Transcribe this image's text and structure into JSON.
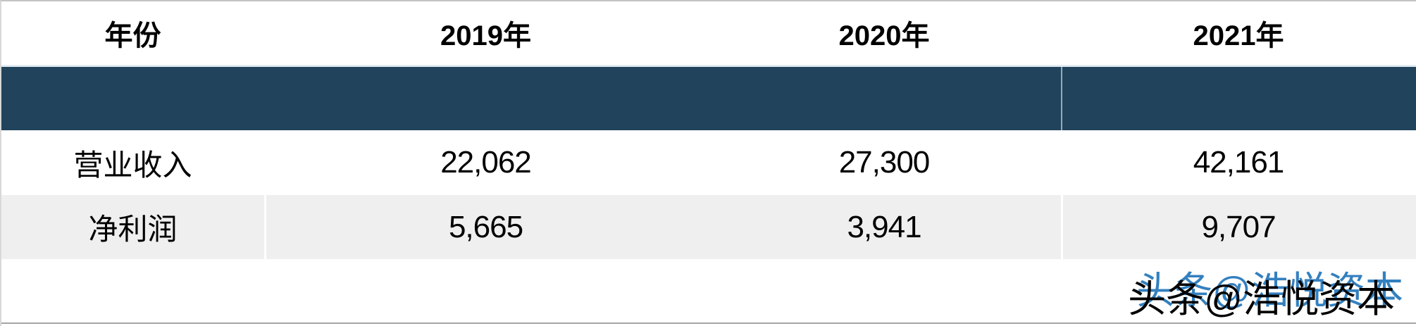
{
  "chart_data": {
    "type": "table",
    "columns": [
      "年份",
      "2019年",
      "2020年",
      "2021年"
    ],
    "rows": [
      {
        "label": "营业收入",
        "values": [
          22062,
          27300,
          42161
        ]
      },
      {
        "label": "净利润",
        "values": [
          5665,
          3941,
          9707
        ]
      }
    ],
    "layout_hints": {
      "header_style": "bold black on white",
      "band_row": "solid navy empty band below header",
      "zebra": "second data row light gray"
    }
  },
  "table": {
    "header": {
      "year": "年份",
      "y2019": "2019年",
      "y2020": "2020年",
      "y2021": "2021年"
    },
    "rows": [
      {
        "label": "营业收入",
        "v2019": "22,062",
        "v2020": "27,300",
        "v2021": "42,161"
      },
      {
        "label": "净利润",
        "v2019": "5,665",
        "v2020": "3,941",
        "v2021": "9,707"
      }
    ]
  },
  "watermark": {
    "text": "头条@浩悦资本",
    "echo": "头条@浩悦资本"
  },
  "colors": {
    "band_navy": "#21435c",
    "alt_row_gray": "#efefef",
    "watermark_blue": "#3380bf",
    "top_border": "#c3c3c3",
    "bottom_line": "#a5a5a5"
  }
}
